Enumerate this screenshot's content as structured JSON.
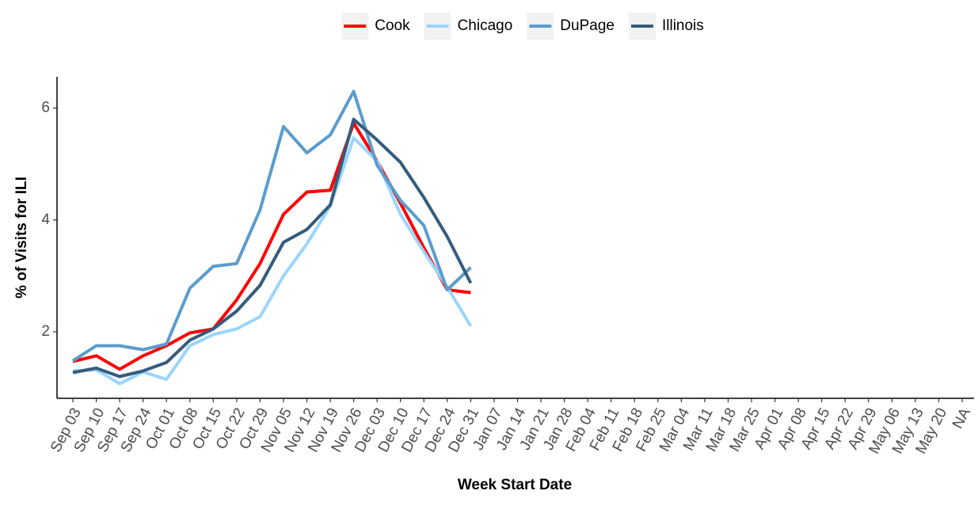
{
  "chart_data": {
    "type": "line",
    "x_label": "Week Start Date",
    "y_label": "% of Visits for ILI",
    "categories": [
      "Sep 03",
      "Sep 10",
      "Sep 17",
      "Sep 24",
      "Oct 01",
      "Oct 08",
      "Oct 15",
      "Oct 22",
      "Oct 29",
      "Nov 05",
      "Nov 12",
      "Nov 19",
      "Nov 26",
      "Dec 03",
      "Dec 10",
      "Dec 17",
      "Dec 24",
      "Dec 31",
      "Jan 07",
      "Jan 14",
      "Jan 21",
      "Jan 28",
      "Feb 04",
      "Feb 11",
      "Feb 18",
      "Feb 25",
      "Mar 04",
      "Mar 11",
      "Mar 18",
      "Mar 25",
      "Apr 01",
      "Apr 08",
      "Apr 15",
      "Apr 22",
      "Apr 29",
      "May 06",
      "May 13",
      "May 20",
      "NA"
    ],
    "series": [
      {
        "name": "Cook",
        "color": "#ff0000",
        "values": [
          1.47,
          1.57,
          1.33,
          1.57,
          1.75,
          1.98,
          2.05,
          2.57,
          3.22,
          4.1,
          4.5,
          4.53,
          5.73,
          5.05,
          4.3,
          3.5,
          2.75,
          2.7,
          null,
          null,
          null,
          null,
          null,
          null,
          null,
          null,
          null,
          null,
          null,
          null,
          null,
          null,
          null,
          null,
          null,
          null,
          null,
          null,
          null
        ]
      },
      {
        "name": "Chicago",
        "color": "#99d5ff",
        "values": [
          1.3,
          1.32,
          1.07,
          1.28,
          1.15,
          1.75,
          1.95,
          2.05,
          2.27,
          3.0,
          3.57,
          4.25,
          5.47,
          5.05,
          4.1,
          3.43,
          2.8,
          2.1,
          null,
          null,
          null,
          null,
          null,
          null,
          null,
          null,
          null,
          null,
          null,
          null,
          null,
          null,
          null,
          null,
          null,
          null,
          null,
          null,
          null
        ]
      },
      {
        "name": "DuPage",
        "color": "#5b9ccd",
        "values": [
          1.48,
          1.75,
          1.75,
          1.68,
          1.78,
          2.78,
          3.17,
          3.22,
          4.18,
          5.67,
          5.2,
          5.52,
          6.3,
          4.98,
          4.35,
          3.9,
          2.75,
          3.15,
          null,
          null,
          null,
          null,
          null,
          null,
          null,
          null,
          null,
          null,
          null,
          null,
          null,
          null,
          null,
          null,
          null,
          null,
          null,
          null,
          null
        ]
      },
      {
        "name": "Illinois",
        "color": "#355c7d",
        "values": [
          1.27,
          1.35,
          1.2,
          1.3,
          1.45,
          1.85,
          2.05,
          2.37,
          2.83,
          3.6,
          3.83,
          4.27,
          5.8,
          5.43,
          5.03,
          4.4,
          3.7,
          2.87,
          null,
          null,
          null,
          null,
          null,
          null,
          null,
          null,
          null,
          null,
          null,
          null,
          null,
          null,
          null,
          null,
          null,
          null,
          null,
          null,
          null
        ]
      }
    ],
    "ylim": [
      0.81,
      6.56
    ],
    "yticks": [
      2,
      4,
      6
    ],
    "grid": false,
    "legend": "top"
  }
}
